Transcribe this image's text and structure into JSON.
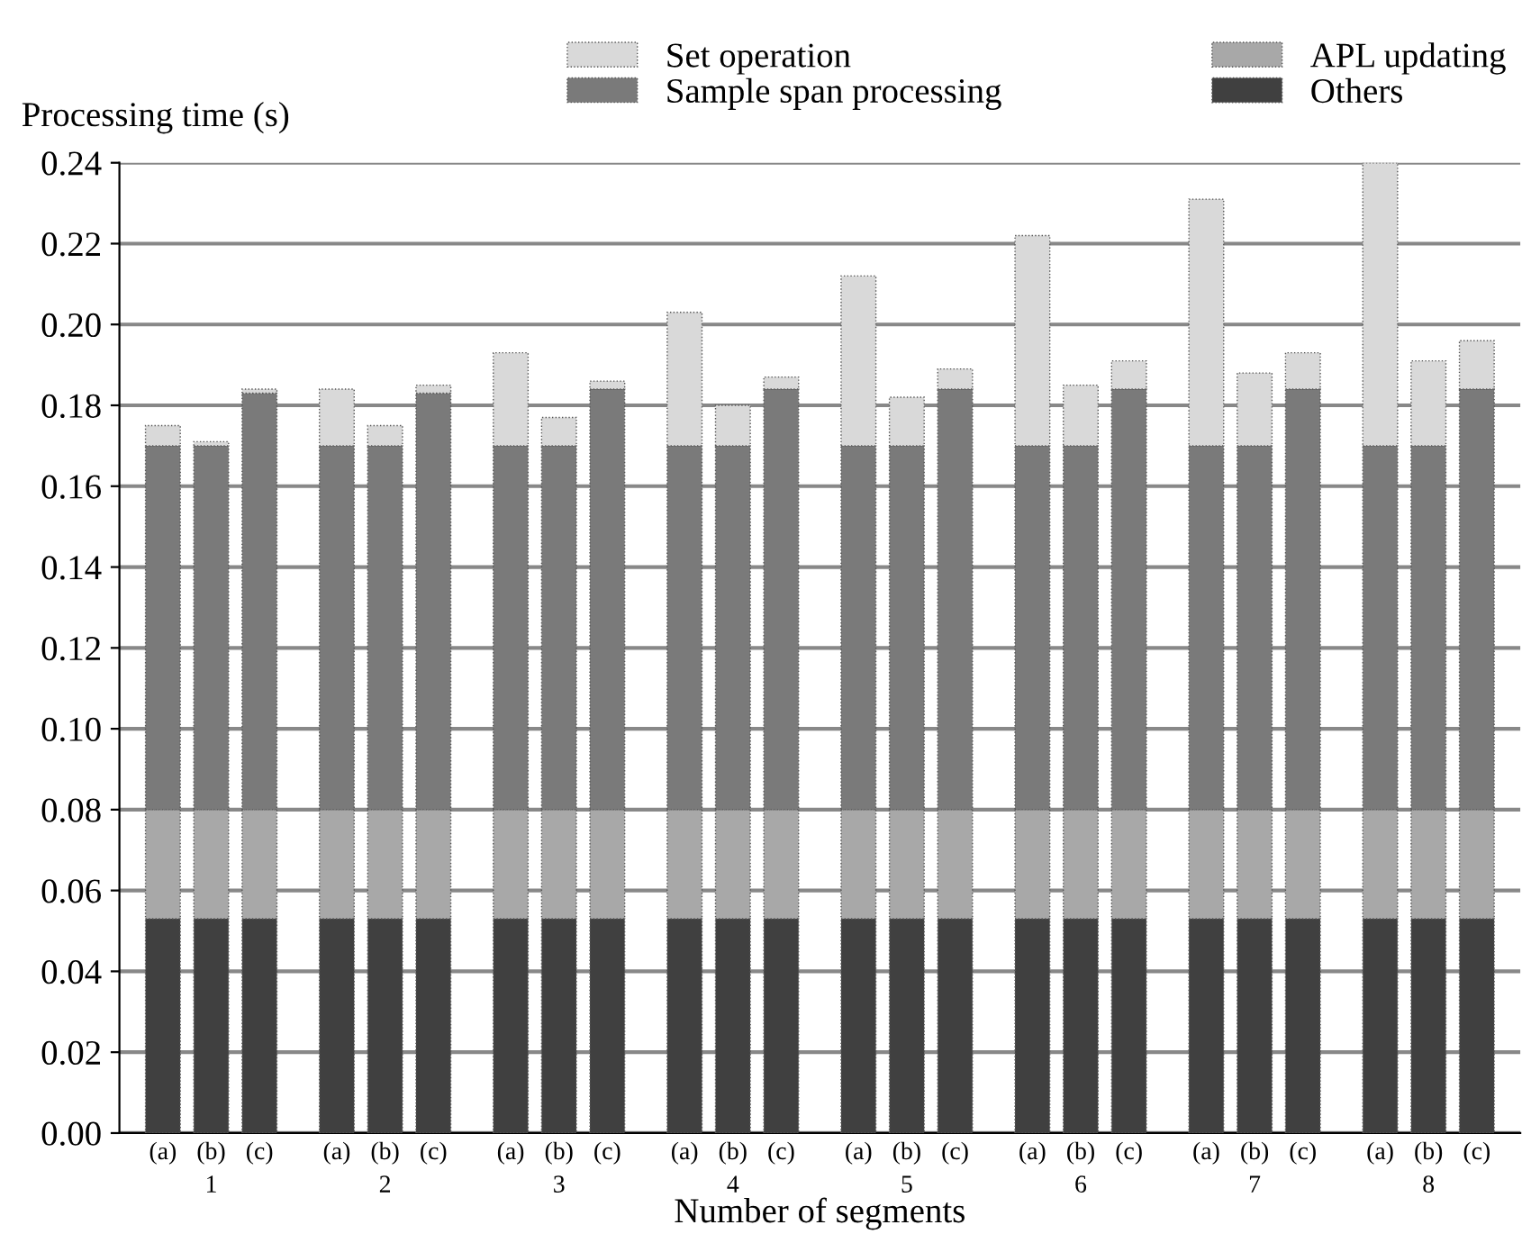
{
  "chart_data": {
    "type": "bar",
    "stacked": true,
    "ylabel": "Processing time (s)",
    "xlabel": "Number of segments",
    "categories": [
      "(a)",
      "(b)\n1",
      "(c)",
      "(a)",
      "(b)\n2",
      "(c)",
      "(a)",
      "(b)\n3",
      "(c)",
      "(a)",
      "(b)\n4",
      "(c)",
      "(a)",
      "(b)\n5",
      "(c)",
      "(a)",
      "(b)\n6",
      "(c)",
      "(a)",
      "(b)\n7",
      "(c)",
      "(a)",
      "(b)\n8",
      "(c)"
    ],
    "series": [
      {
        "name": "Others",
        "color": "#404040",
        "values": [
          0.053,
          0.053,
          0.053,
          0.053,
          0.053,
          0.053,
          0.053,
          0.053,
          0.053,
          0.053,
          0.053,
          0.053,
          0.053,
          0.053,
          0.053,
          0.053,
          0.053,
          0.053,
          0.053,
          0.053,
          0.053,
          0.053,
          0.053,
          0.053
        ]
      },
      {
        "name": "APL updating",
        "color": "#a8a8a8",
        "values": [
          0.027,
          0.027,
          0.027,
          0.027,
          0.027,
          0.027,
          0.027,
          0.027,
          0.027,
          0.027,
          0.027,
          0.027,
          0.027,
          0.027,
          0.027,
          0.027,
          0.027,
          0.027,
          0.027,
          0.027,
          0.027,
          0.027,
          0.027,
          0.027
        ]
      },
      {
        "name": "Sample span processing",
        "color": "#7a7a7a",
        "values": [
          0.09,
          0.09,
          0.103,
          0.09,
          0.09,
          0.103,
          0.09,
          0.09,
          0.104,
          0.09,
          0.09,
          0.104,
          0.09,
          0.09,
          0.104,
          0.09,
          0.09,
          0.104,
          0.09,
          0.09,
          0.104,
          0.09,
          0.09,
          0.104
        ]
      },
      {
        "name": "Set operation",
        "color": "#d9d9d9",
        "values": [
          0.005,
          0.001,
          0.001,
          0.014,
          0.005,
          0.002,
          0.023,
          0.007,
          0.002,
          0.033,
          0.01,
          0.003,
          0.042,
          0.012,
          0.005,
          0.052,
          0.015,
          0.007,
          0.061,
          0.018,
          0.009,
          0.07,
          0.021,
          0.012
        ]
      }
    ],
    "ylim": [
      0,
      0.24
    ],
    "yticks": [
      {
        "value": 0,
        "label": "0.00"
      },
      {
        "value": 0.02,
        "label": "0.02"
      },
      {
        "value": 0.04,
        "label": "0.04"
      },
      {
        "value": 0.06,
        "label": "0.06"
      },
      {
        "value": 0.08,
        "label": "0.08"
      },
      {
        "value": 0.1,
        "label": "0.10"
      },
      {
        "value": 0.12,
        "label": "0.12"
      },
      {
        "value": 0.14,
        "label": "0.14"
      },
      {
        "value": 0.16,
        "label": "0.16"
      },
      {
        "value": 0.18,
        "label": "0.18"
      },
      {
        "value": 0.2,
        "label": "0.20"
      },
      {
        "value": 0.22,
        "label": "0.22"
      },
      {
        "value": 0.24,
        "label": "0.24"
      }
    ],
    "grid": "y",
    "legend": "top right"
  }
}
